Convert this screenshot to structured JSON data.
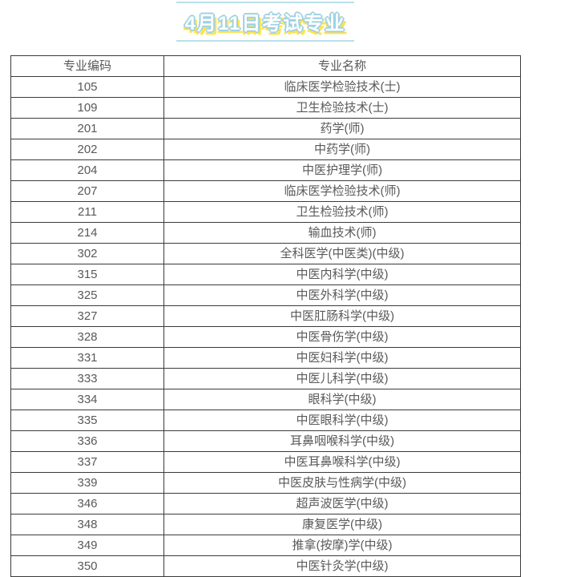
{
  "title": "4月11日考试专业",
  "colors": {
    "background": "#ffffff",
    "title_text": "#ffffff",
    "title_outline": "#9fd2e2",
    "title_shadow": "#ffe34d",
    "title_rule_line": "#b9e0ea",
    "table_border": "#3b3b3b",
    "table_text": "#595959"
  },
  "table": {
    "columns": [
      "专业编码",
      "专业名称"
    ],
    "rows": [
      {
        "code": "105",
        "name": "临床医学检验技术(士)"
      },
      {
        "code": "109",
        "name": "卫生检验技术(士)"
      },
      {
        "code": "201",
        "name": "药学(师)"
      },
      {
        "code": "202",
        "name": "中药学(师)"
      },
      {
        "code": "204",
        "name": "中医护理学(师)"
      },
      {
        "code": "207",
        "name": "临床医学检验技术(师)"
      },
      {
        "code": "211",
        "name": "卫生检验技术(师)"
      },
      {
        "code": "214",
        "name": "输血技术(师)"
      },
      {
        "code": "302",
        "name": "全科医学(中医类)(中级)"
      },
      {
        "code": "315",
        "name": "中医内科学(中级)"
      },
      {
        "code": "325",
        "name": "中医外科学(中级)"
      },
      {
        "code": "327",
        "name": "中医肛肠科学(中级)"
      },
      {
        "code": "328",
        "name": "中医骨伤学(中级)"
      },
      {
        "code": "331",
        "name": "中医妇科学(中级)"
      },
      {
        "code": "333",
        "name": "中医儿科学(中级)"
      },
      {
        "code": "334",
        "name": "眼科学(中级)"
      },
      {
        "code": "335",
        "name": "中医眼科学(中级)"
      },
      {
        "code": "336",
        "name": "耳鼻咽喉科学(中级)"
      },
      {
        "code": "337",
        "name": "中医耳鼻喉科学(中级)"
      },
      {
        "code": "339",
        "name": "中医皮肤与性病学(中级)"
      },
      {
        "code": "346",
        "name": "超声波医学(中级)"
      },
      {
        "code": "348",
        "name": "康复医学(中级)"
      },
      {
        "code": "349",
        "name": "推拿(按摩)学(中级)"
      },
      {
        "code": "350",
        "name": "中医针灸学(中级)"
      }
    ]
  }
}
